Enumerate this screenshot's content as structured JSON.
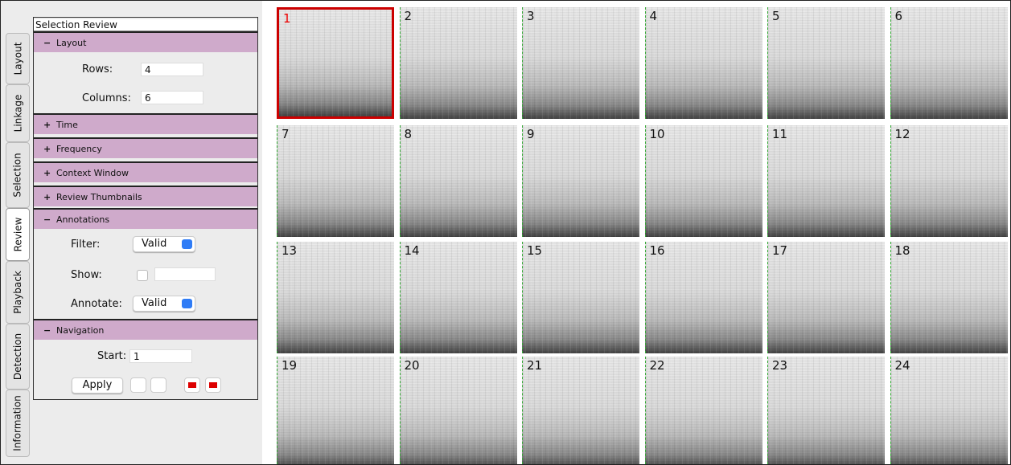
{
  "tabs": [
    "Layout",
    "Linkage",
    "Selection",
    "Review",
    "Playback",
    "Detection",
    "Information"
  ],
  "panel": {
    "title": "Selection Review",
    "layout": {
      "toggle": "−",
      "header": "Layout",
      "rows_label": "Rows:",
      "rows_value": "4",
      "columns_label": "Columns:",
      "columns_value": "6"
    },
    "collapsed": [
      {
        "toggle": "+",
        "header": "Time"
      },
      {
        "toggle": "+",
        "header": "Frequency"
      },
      {
        "toggle": "+",
        "header": "Context Window"
      },
      {
        "toggle": "+",
        "header": "Review Thumbnails"
      }
    ],
    "annotations": {
      "toggle": "−",
      "header": "Annotations",
      "filter_label": "Filter:",
      "filter_value": "Valid",
      "show_label": "Show:",
      "annotate_label": "Annotate:",
      "annotate_value": "Valid"
    },
    "navigation": {
      "toggle": "−",
      "header": "Navigation",
      "start_label": "Start:",
      "start_value": "1",
      "apply": "Apply"
    }
  },
  "thumbnails": [
    "1",
    "2",
    "3",
    "4",
    "5",
    "6",
    "7",
    "8",
    "9",
    "10",
    "11",
    "12",
    "13",
    "14",
    "15",
    "16",
    "17",
    "18",
    "19",
    "20",
    "21",
    "22",
    "23",
    "24"
  ]
}
